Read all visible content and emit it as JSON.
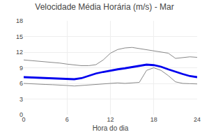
{
  "chart_data": {
    "type": "line",
    "title": "Velocidade Média Horária (m/s) - Mar",
    "xlabel": "Hora do dia",
    "x": [
      0,
      1,
      2,
      3,
      4,
      5,
      6,
      7,
      8,
      9,
      10,
      11,
      12,
      13,
      14,
      15,
      16,
      17,
      18,
      19,
      20,
      21,
      22,
      23,
      24
    ],
    "series": [
      {
        "color": "#888888",
        "values": [
          10.5,
          10.4,
          10.2,
          10.1,
          10.0,
          9.9,
          9.7,
          9.5,
          9.4,
          9.4,
          9.6,
          10.5,
          11.8,
          12.5,
          12.8,
          12.9,
          12.7,
          12.4,
          12.2,
          12.0,
          11.8,
          10.8,
          11.0,
          11.1,
          11.0
        ]
      },
      {
        "color": "#888888",
        "values": [
          6.0,
          5.9,
          5.85,
          5.8,
          5.75,
          5.7,
          5.6,
          5.5,
          5.6,
          5.7,
          5.8,
          5.9,
          6.0,
          6.1,
          6.0,
          6.1,
          6.2,
          8.5,
          9.0,
          8.5,
          7.5,
          6.3,
          6.0,
          5.95,
          5.9
        ]
      },
      {
        "color": "#0000ee",
        "values": [
          7.2,
          7.15,
          7.1,
          7.05,
          7.0,
          6.95,
          6.85,
          6.8,
          7.0,
          7.5,
          7.9,
          8.2,
          8.5,
          8.7,
          8.9,
          9.1,
          9.4,
          9.6,
          9.5,
          9.2,
          8.7,
          8.2,
          7.8,
          7.4,
          7.2
        ]
      }
    ],
    "xlim": [
      0,
      24
    ],
    "ylim": [
      0,
      18
    ],
    "xticks": [
      0,
      6,
      12,
      18,
      24
    ],
    "yticks": [
      0,
      3,
      6,
      9,
      12,
      15,
      18
    ],
    "grid": true
  }
}
